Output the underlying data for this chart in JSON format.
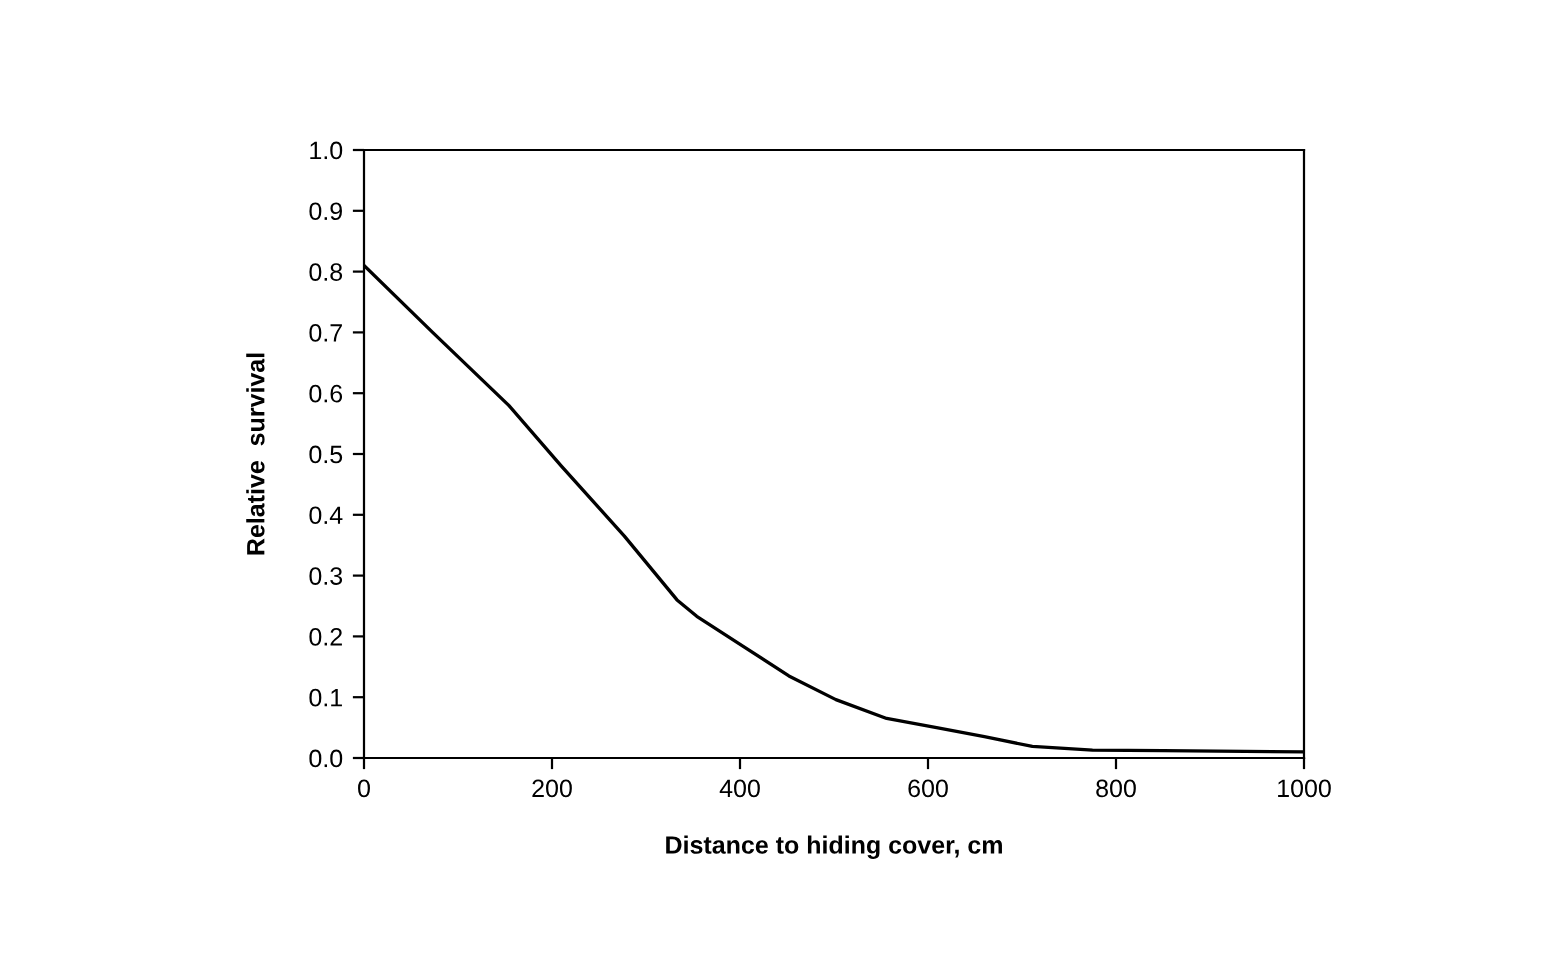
{
  "chart_data": {
    "type": "line",
    "xlabel": "Distance to hiding cover, cm",
    "ylabel": "Relative  survival",
    "series": [
      {
        "color": "#000000",
        "x": [
          0,
          73,
          154,
          210,
          277,
          333,
          354,
          403,
          452,
          502,
          556,
          612,
          660,
          711,
          775,
          850,
          1000
        ],
        "values": [
          0.81,
          0.7,
          0.58,
          0.48,
          0.365,
          0.26,
          0.233,
          0.184,
          0.135,
          0.096,
          0.065,
          0.049,
          0.035,
          0.019,
          0.013,
          0.012,
          0.01
        ]
      }
    ],
    "xlim": [
      0,
      1000
    ],
    "xticks": [
      0,
      200,
      400,
      600,
      800,
      1000
    ],
    "ylim": [
      0,
      1.0
    ],
    "yticks": [
      {
        "value": 0,
        "label": "0.0"
      },
      0.1,
      0.2,
      0.3,
      0.4,
      0.5,
      0.6,
      0.7,
      0.8,
      0.9,
      {
        "value": 1.0,
        "label": "1.0"
      }
    ],
    "grid": false,
    "legend": false,
    "marker": "none",
    "line_style": "solid"
  }
}
